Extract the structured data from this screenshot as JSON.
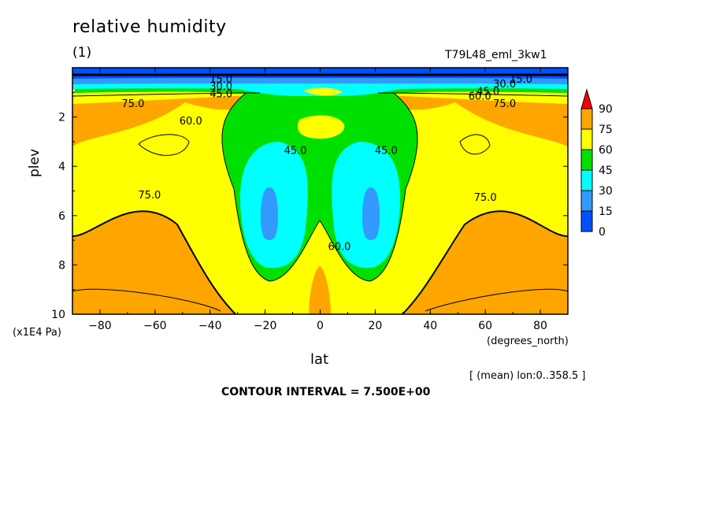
{
  "header": {
    "title": "relative humidity",
    "subtitle": "(1)",
    "run_id": "T79L48_eml_3kw1"
  },
  "footer": {
    "y_unit": "(x1E4 Pa)",
    "x_unit": "(degrees_north)",
    "mean_info": "[ (mean) lon:0..358.5 ]",
    "contour_interval": "CONTOUR INTERVAL = 7.500E+00"
  },
  "colors": {
    "0-15": "#0050ff",
    "15-30": "#3399ff",
    "30-45": "#00ffff",
    "45-60": "#00e000",
    "60-75": "#ffff00",
    "75-90": "#ffa500",
    ">90": "#ff0000"
  },
  "chart_data": {
    "type": "heatmap",
    "variable": "relative humidity",
    "xlabel": "lat",
    "ylabel": "plev",
    "xlim": [
      -90,
      90
    ],
    "ylim": [
      10,
      0
    ],
    "xticks": [
      -80,
      -60,
      -40,
      -20,
      0,
      20,
      40,
      60,
      80
    ],
    "yticks": [
      2,
      4,
      6,
      8,
      10
    ],
    "contour_interval": 7.5,
    "levels": [
      0,
      15,
      30,
      45,
      60,
      75,
      90
    ],
    "colorbar_labels": [
      "90",
      "75",
      "60",
      "45",
      "30",
      "15",
      "0"
    ],
    "contour_labels": [
      {
        "text": "15.0",
        "lat": -36,
        "plev": 0.6
      },
      {
        "text": "30.0",
        "lat": -36,
        "plev": 0.9
      },
      {
        "text": "45.0",
        "lat": -36,
        "plev": 1.2
      },
      {
        "text": "75.0",
        "lat": -68,
        "plev": 1.6
      },
      {
        "text": "60.0",
        "lat": -47,
        "plev": 2.3
      },
      {
        "text": "45.0",
        "lat": -9,
        "plev": 3.5
      },
      {
        "text": "45.0",
        "lat": 24,
        "plev": 3.5
      },
      {
        "text": "75.0",
        "lat": -62,
        "plev": 5.3
      },
      {
        "text": "75.0",
        "lat": 60,
        "plev": 5.4
      },
      {
        "text": "60.0",
        "lat": 7,
        "plev": 7.4
      },
      {
        "text": "15.0",
        "lat": 73,
        "plev": 0.6
      },
      {
        "text": "30.0",
        "lat": 67,
        "plev": 0.8
      },
      {
        "text": "45.0",
        "lat": 61,
        "plev": 1.1
      },
      {
        "text": "60.0",
        "lat": 58,
        "plev": 1.3
      },
      {
        "text": "75.0",
        "lat": 67,
        "plev": 1.6
      }
    ]
  }
}
